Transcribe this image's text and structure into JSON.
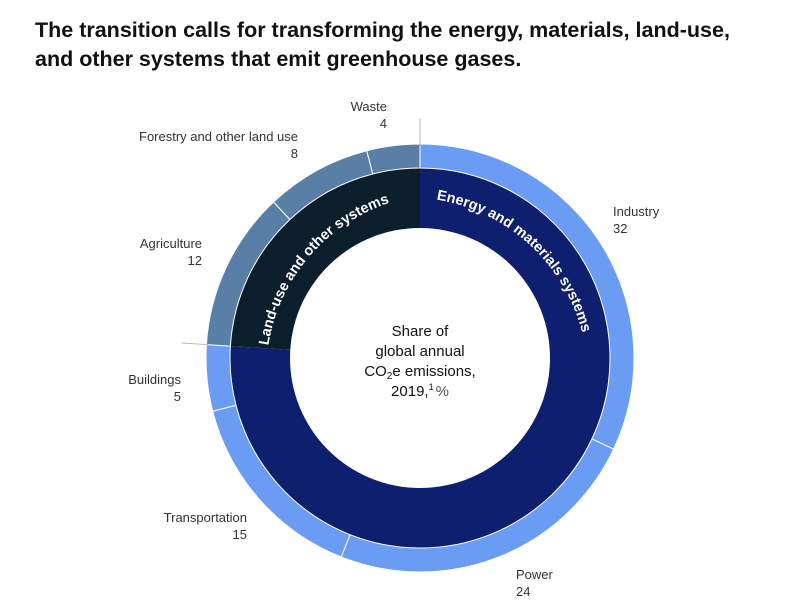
{
  "title_lines": [
    "The transition calls for transforming the energy, materials, land-use,",
    "and other systems that emit greenhouse gases."
  ],
  "center_label": {
    "line1": "Share of",
    "line2": "global annual",
    "line3a": "CO",
    "line3sub": "2",
    "line3b": "e emissions,",
    "line4": "2019,",
    "footnote": "1",
    "unit": "%"
  },
  "colors": {
    "energy_outer": "#6b9cf3",
    "energy_inner": "#0d1f6e",
    "land_outer": "#5a7fa6",
    "land_inner": "#0b1e2c",
    "divider": "#ffffff",
    "leader": "#b8b8b8"
  },
  "chart_data": {
    "type": "donut",
    "unit": "%",
    "groups": [
      {
        "name": "Energy and materials systems",
        "sectors": [
          "Industry",
          "Power",
          "Transportation",
          "Buildings"
        ]
      },
      {
        "name": "Land-use and other systems",
        "sectors": [
          "Agriculture",
          "Forestry and other land use",
          "Waste"
        ]
      }
    ],
    "sectors": [
      {
        "name": "Industry",
        "value": 32,
        "group": "Energy and materials systems"
      },
      {
        "name": "Power",
        "value": 24,
        "group": "Energy and materials systems"
      },
      {
        "name": "Transportation",
        "value": 15,
        "group": "Energy and materials systems"
      },
      {
        "name": "Buildings",
        "value": 5,
        "group": "Energy and materials systems"
      },
      {
        "name": "Agriculture",
        "value": 12,
        "group": "Land-use and other systems"
      },
      {
        "name": "Forestry and other land use",
        "value": 8,
        "group": "Land-use and other systems"
      },
      {
        "name": "Waste",
        "value": 4,
        "group": "Land-use and other systems"
      }
    ]
  }
}
